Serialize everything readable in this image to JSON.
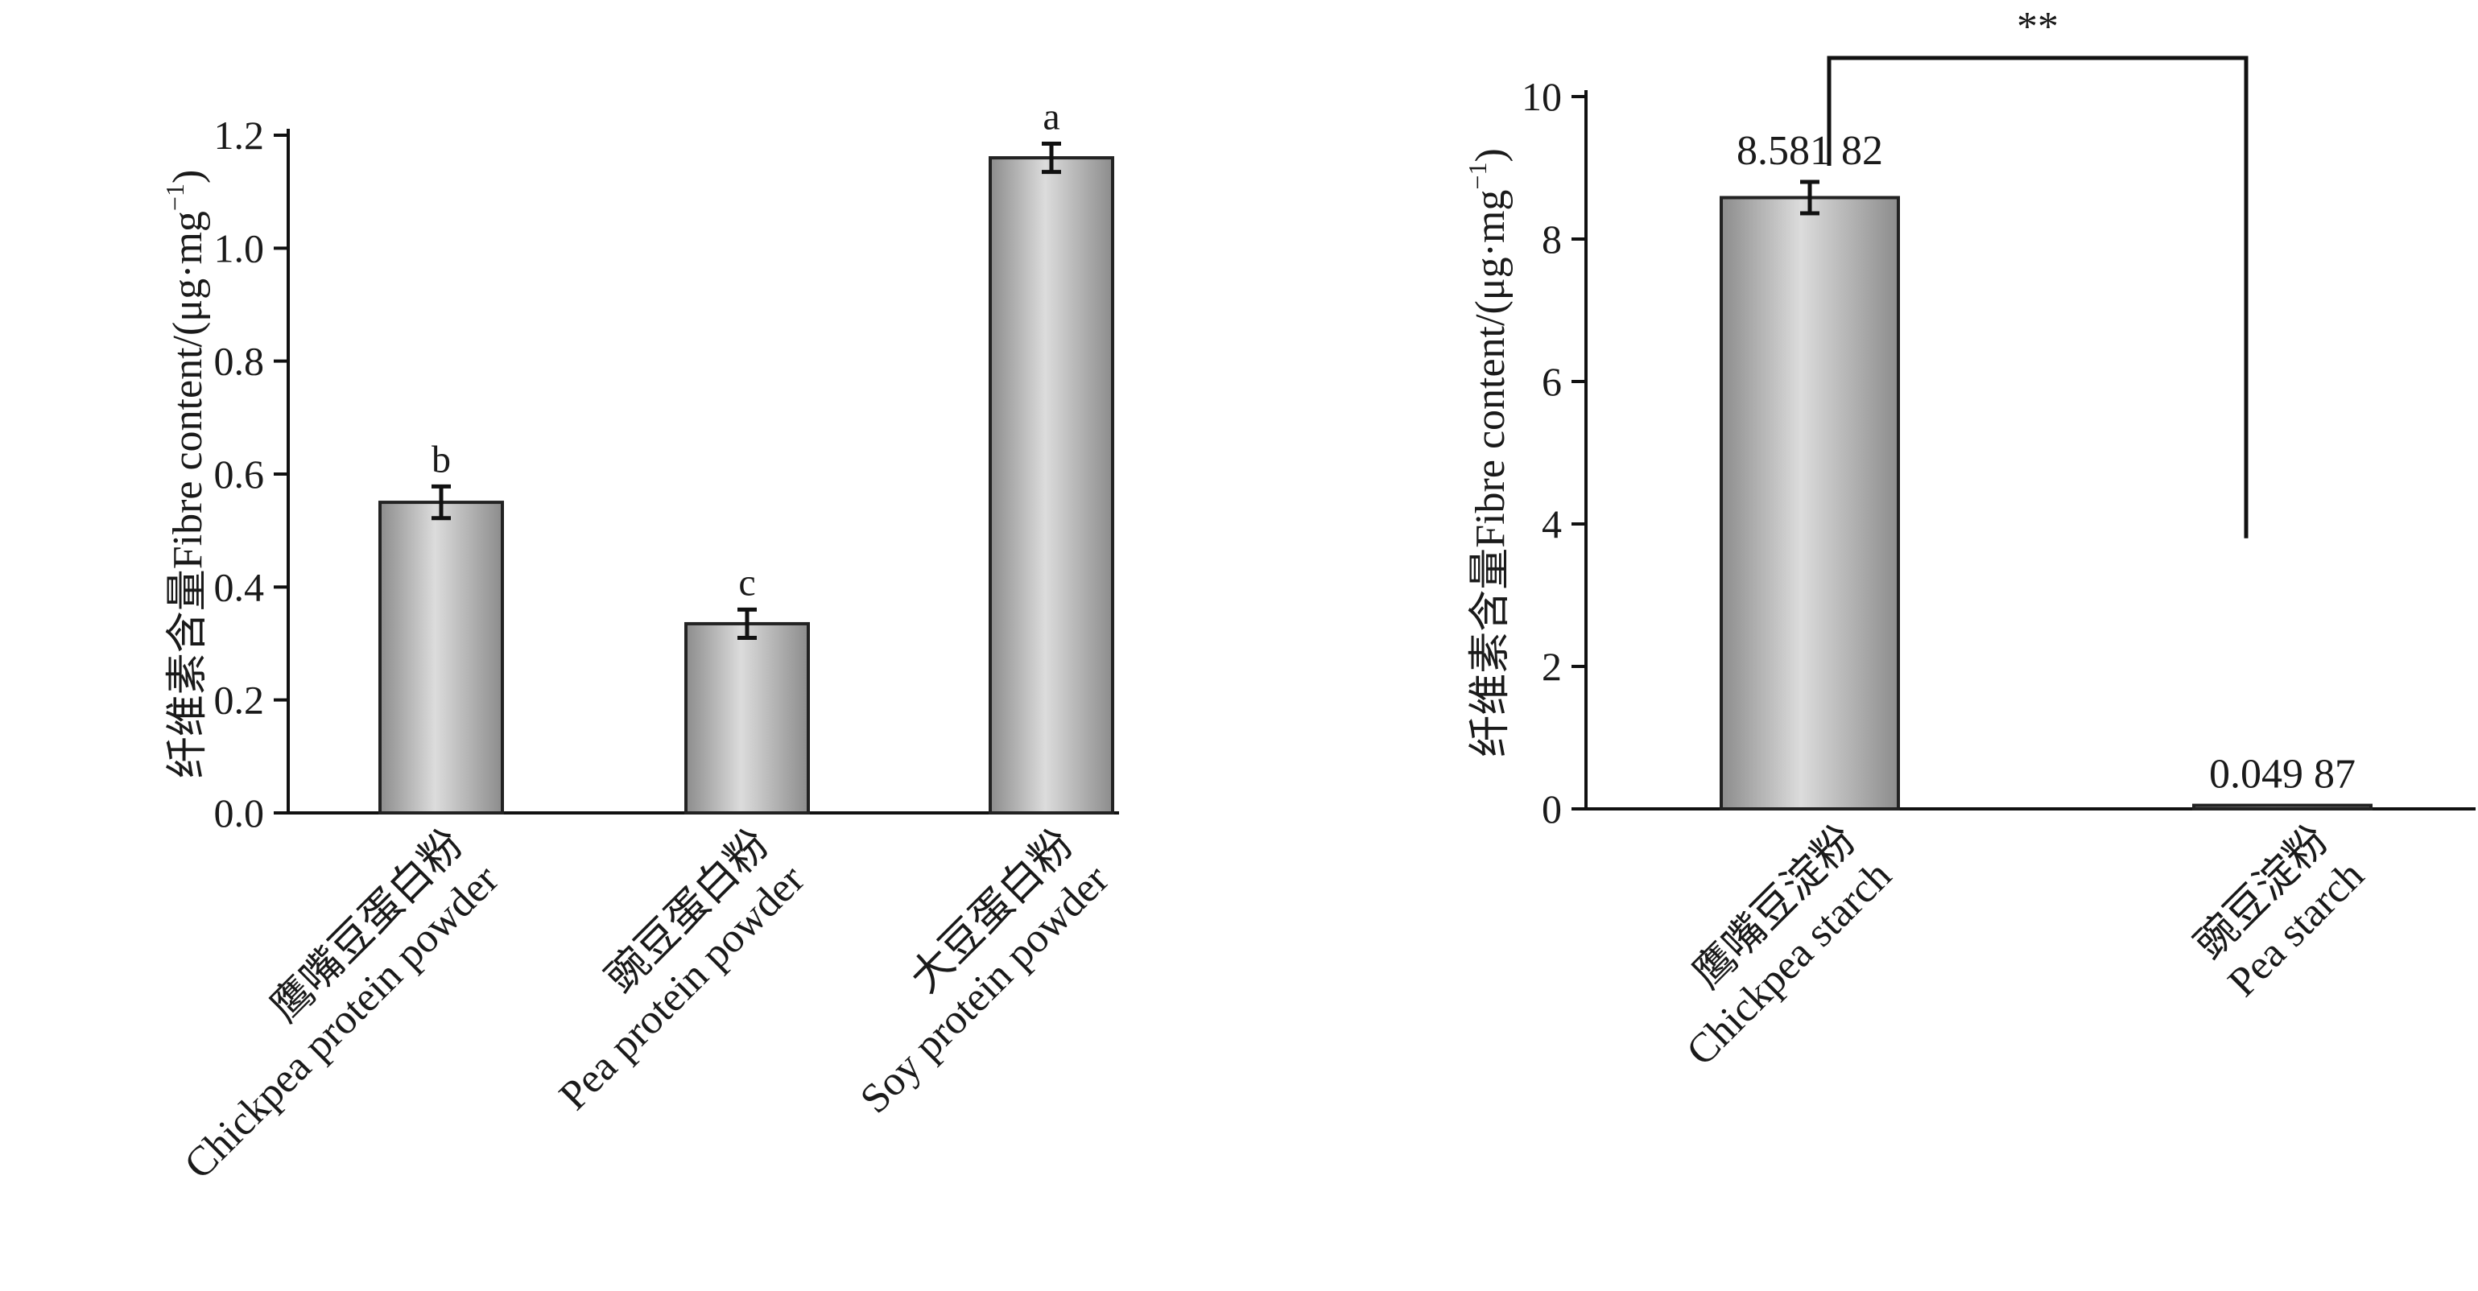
{
  "colors": {
    "bar_edge": "#222222",
    "bar_light": "#dcdcdc",
    "bar_dark": "#8c8c8c",
    "axis": "#111111"
  },
  "chart_data": [
    {
      "type": "bar",
      "title": "",
      "ylabel": "纤维素含量Fibre content/(μg·mg⁻¹)",
      "ylabel_parts": {
        "main": "纤维素含量Fibre content/(μg·mg",
        "sup": "−1",
        "close": ")"
      },
      "ylim": [
        0,
        1.2
      ],
      "yticks": [
        "0.0",
        "0.2",
        "0.4",
        "0.6",
        "0.8",
        "1.0",
        "1.2"
      ],
      "categories": [
        {
          "zh": "鹰嘴豆蛋白粉",
          "en": "Chickpea protein powder"
        },
        {
          "zh": "豌豆蛋白粉",
          "en": "Pea protein powder"
        },
        {
          "zh": "大豆蛋白粉",
          "en": "Soy protein powder"
        }
      ],
      "values": [
        0.55,
        0.335,
        1.16
      ],
      "errors": [
        0.028,
        0.025,
        0.025
      ],
      "letters": [
        "b",
        "c",
        "a"
      ],
      "grid": false
    },
    {
      "type": "bar",
      "title": "",
      "ylabel": "纤维素含量Fibre content/(μg·mg⁻¹)",
      "ylabel_parts": {
        "main": "纤维素含量Fibre content/(μg·mg",
        "sup": "−1",
        "close": ")"
      },
      "ylim": [
        0,
        10
      ],
      "yticks": [
        "0",
        "2",
        "4",
        "6",
        "8",
        "10"
      ],
      "categories": [
        {
          "zh": "鹰嘴豆淀粉",
          "en": "Chickpea starch"
        },
        {
          "zh": "豌豆淀粉",
          "en": "Pea starch"
        }
      ],
      "values": [
        8.58182,
        0.04987
      ],
      "errors": [
        0.22,
        0
      ],
      "value_labels": [
        "8.581 82",
        "0.049 87"
      ],
      "significance": "**",
      "grid": false
    }
  ]
}
